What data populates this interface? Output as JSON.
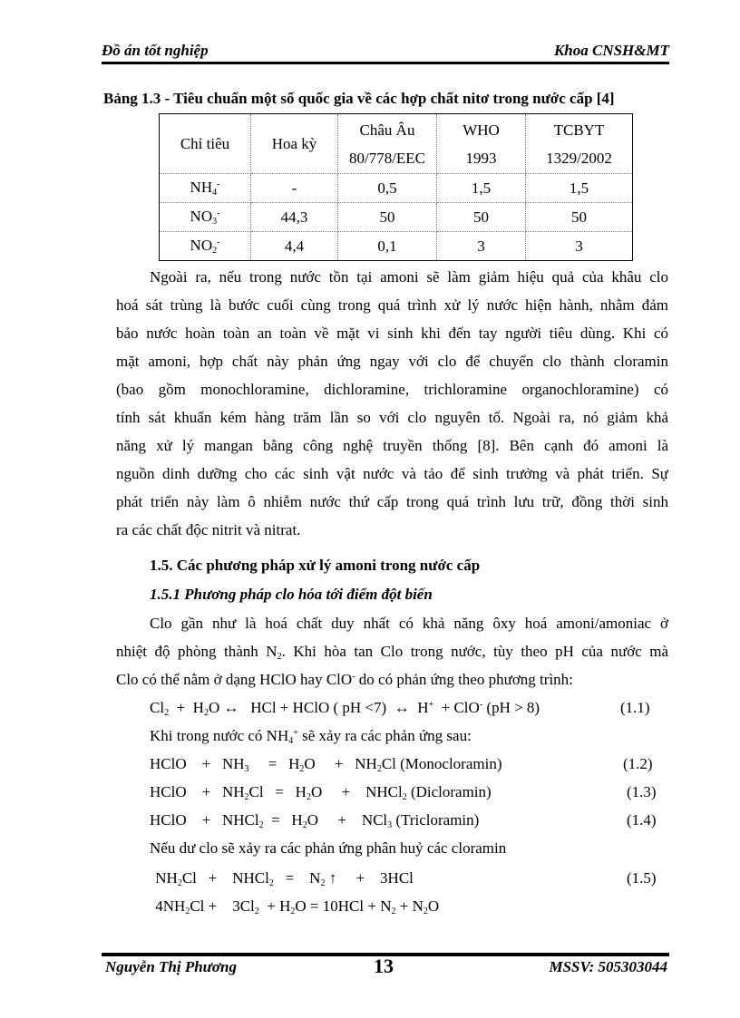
{
  "header": {
    "left": "Đồ án tốt nghiệp",
    "right": "Khoa CNSH&MT"
  },
  "table": {
    "caption": "Bảng 1.3 - Tiêu chuẩn một số quốc gia về các hợp chất nitơ trong nước cấp [4]",
    "headers": [
      [
        "Chỉ tiêu"
      ],
      [
        "Hoa kỳ"
      ],
      [
        "Châu Âu",
        "80/778/EEC"
      ],
      [
        "WHO",
        "1993"
      ],
      [
        "TCBYT",
        "1329/2002"
      ]
    ],
    "rows": [
      {
        "base": "NH",
        "sub": "4",
        "sup": "-",
        "values": [
          "-",
          "0,5",
          "1,5",
          "1,5"
        ]
      },
      {
        "base": "NO",
        "sub": "3",
        "sup": "-",
        "values": [
          "44,3",
          "50",
          "50",
          "50"
        ]
      },
      {
        "base": "NO",
        "sub": "2",
        "sup": "-",
        "values": [
          "4,4",
          "0,1",
          "3",
          "3"
        ]
      }
    ]
  },
  "paragraph1": [
    "Ngoài ra, nếu trong nước tồn tại amoni sẽ làm giảm hiệu quả của khâu clo",
    "hoá sát trùng là bước cuối cùng trong quá trình xử lý nước hiện hành, nhằm đảm",
    "bảo nước hoàn toàn an toàn về mặt vi sinh khi đến tay người tiêu dùng. Khi có",
    "mặt amoni, hợp chất này phản ứng ngay với clo để chuyển clo thành cloramin",
    "(bao gồm monochloramine, dichloramine, trichloramine organochloramine) có",
    "tính sát khuẩn kém hàng trăm lần so với clo nguyên tố. Ngoài ra, nó giảm khả",
    "năng xử lý mangan bằng công nghệ truyền thống [8]. Bên cạnh đó amoni là",
    "nguồn dinh dưỡng cho các sinh vật nước và tảo để sinh trưởng và phát triển. Sự",
    "phát triển này làm ô nhiễm nước thứ cấp trong quá trình lưu trữ, đồng thời sinh",
    "ra các chất độc nitrit và nitrat."
  ],
  "section_heading": "1.5. Các phương pháp xử  lý amoni trong nước cấp",
  "subsection_heading": "1.5.1  Phương pháp clo hóa tới điểm đột biến",
  "paragraph2": [
    [
      {
        "t": "Clo gần như là hoá chất duy nhất có khả năng ôxy hoá amoni/amoniac ở"
      }
    ],
    [
      {
        "t": "nhiệt độ phòng thành N"
      },
      {
        "sub": "2"
      },
      {
        "t": ". Khi hòa tan Clo trong nước, tùy theo pH của nước mà"
      }
    ],
    [
      {
        "t": "Clo có thể nằm ở dạng HClO hay ClO"
      },
      {
        "sup": "-"
      },
      {
        "t": " do có phản ứng theo phương trình:"
      }
    ]
  ],
  "equations": [
    {
      "parts": [
        {
          "t": "Cl"
        },
        {
          "sub": "2"
        },
        {
          "t": "  +  H"
        },
        {
          "sub": "2"
        },
        {
          "t": "O ↔   HCl + HClO ( pH <7)  ↔  H"
        },
        {
          "sup": "+"
        },
        {
          "t": "  + ClO"
        },
        {
          "sup": "-"
        },
        {
          "t": " (pH > 8)"
        }
      ],
      "number": "(1.1)"
    },
    {
      "parts": [
        {
          "t": "Khi trong nước có NH"
        },
        {
          "sub": "4"
        },
        {
          "sup": "+"
        },
        {
          "t": " sẽ xảy ra các phản ứng sau:"
        }
      ],
      "number": ""
    },
    {
      "parts": [
        {
          "t": "HClO    +   NH"
        },
        {
          "sub": "3"
        },
        {
          "t": "     =   H"
        },
        {
          "sub": "2"
        },
        {
          "t": "O     +   NH"
        },
        {
          "sub": "2"
        },
        {
          "t": "Cl (Monocloramin)"
        }
      ],
      "number": "(1.2)"
    },
    {
      "parts": [
        {
          "t": "HClO    +   NH"
        },
        {
          "sub": "2"
        },
        {
          "t": "Cl   =   H"
        },
        {
          "sub": "2"
        },
        {
          "t": "O     +    NHCl"
        },
        {
          "sub": "2"
        },
        {
          "t": " (Dicloramin)"
        }
      ],
      "number": "(1.3)"
    },
    {
      "parts": [
        {
          "t": "HClO    +   NHCl"
        },
        {
          "sub": "2"
        },
        {
          "t": "  =   H"
        },
        {
          "sub": "2"
        },
        {
          "t": "O     +    NCl"
        },
        {
          "sub": "3"
        },
        {
          "t": " (Tricloramin)"
        }
      ],
      "number": "(1.4)"
    },
    {
      "parts": [
        {
          "t": "Nếu dư clo sẽ xảy ra các phản ứng phân huỷ các cloramin"
        }
      ],
      "number": ""
    },
    {
      "parts": [
        {
          "t": " NH"
        },
        {
          "sub": "2"
        },
        {
          "t": "Cl   +    NHCl"
        },
        {
          "sub": "2"
        },
        {
          "t": "   =    N"
        },
        {
          "sub": "2"
        },
        {
          "t": " ↑     +    3HCl"
        }
      ],
      "number": "(1.5)"
    },
    {
      "parts": [
        {
          "t": " 4NH"
        },
        {
          "sub": "2"
        },
        {
          "t": "Cl +    3Cl"
        },
        {
          "sub": "2"
        },
        {
          "t": "  + H"
        },
        {
          "sub": "2"
        },
        {
          "t": "O = 10HCl + N"
        },
        {
          "sub": "2"
        },
        {
          "t": " + N"
        },
        {
          "sub": "2"
        },
        {
          "t": "O"
        }
      ],
      "number": ""
    }
  ],
  "footer": {
    "author": "Nguyễn Thị Phương",
    "page": "13",
    "student_id": "MSSV: 505303044"
  }
}
